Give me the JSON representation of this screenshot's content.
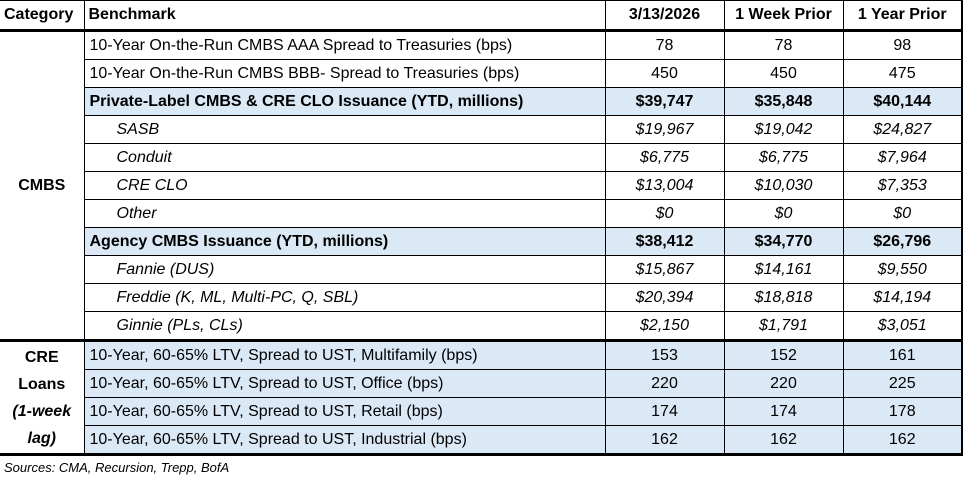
{
  "table": {
    "header": {
      "category": "Category",
      "benchmark": "Benchmark",
      "col1": "3/13/2026",
      "col2": "1 Week Prior",
      "col3": "1 Year Prior"
    },
    "categories": {
      "cmbs": "CMBS",
      "cre_lines": [
        "CRE",
        "Loans",
        "(1-week",
        "lag)"
      ]
    },
    "rows": [
      {
        "benchmark": "10-Year On-the-Run CMBS AAA Spread to Treasuries (bps)",
        "v1": "78",
        "v2": "78",
        "v3": "98"
      },
      {
        "benchmark": "10-Year On-the-Run CMBS BBB- Spread to Treasuries (bps)",
        "v1": "450",
        "v2": "450",
        "v3": "475"
      },
      {
        "benchmark": "Private-Label CMBS & CRE CLO Issuance (YTD, millions)",
        "v1": "$39,747",
        "v2": "$35,848",
        "v3": "$40,144"
      },
      {
        "benchmark": "SASB",
        "v1": "$19,967",
        "v2": "$19,042",
        "v3": "$24,827"
      },
      {
        "benchmark": "Conduit",
        "v1": "$6,775",
        "v2": "$6,775",
        "v3": "$7,964"
      },
      {
        "benchmark": "CRE CLO",
        "v1": "$13,004",
        "v2": "$10,030",
        "v3": "$7,353"
      },
      {
        "benchmark": "Other",
        "v1": "$0",
        "v2": "$0",
        "v3": "$0"
      },
      {
        "benchmark": "Agency CMBS Issuance (YTD, millions)",
        "v1": "$38,412",
        "v2": "$34,770",
        "v3": "$26,796"
      },
      {
        "benchmark": "Fannie (DUS)",
        "v1": "$15,867",
        "v2": "$14,161",
        "v3": "$9,550"
      },
      {
        "benchmark": "Freddie (K, ML, Multi-PC, Q, SBL)",
        "v1": "$20,394",
        "v2": "$18,818",
        "v3": "$14,194"
      },
      {
        "benchmark": "Ginnie (PLs, CLs)",
        "v1": "$2,150",
        "v2": "$1,791",
        "v3": "$3,051"
      },
      {
        "benchmark": "10-Year, 60-65% LTV, Spread to UST, Multifamily (bps)",
        "v1": "153",
        "v2": "152",
        "v3": "161"
      },
      {
        "benchmark": "10-Year, 60-65% LTV, Spread to UST, Office (bps)",
        "v1": "220",
        "v2": "220",
        "v3": "225"
      },
      {
        "benchmark": "10-Year, 60-65% LTV, Spread to UST, Retail (bps)",
        "v1": "174",
        "v2": "174",
        "v3": "178"
      },
      {
        "benchmark": "10-Year, 60-65% LTV, Spread to UST, Industrial (bps)",
        "v1": "162",
        "v2": "162",
        "v3": "162"
      }
    ],
    "footer": "Sources: CMA, Recursion, Trepp, BofA"
  },
  "colors": {
    "highlight": "#DBE8F5",
    "border": "#000000"
  }
}
